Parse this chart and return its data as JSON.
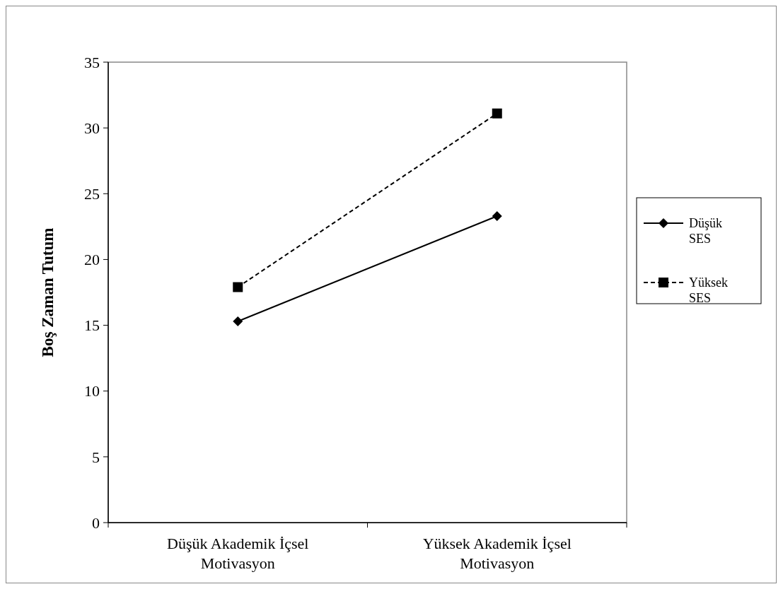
{
  "chart_data": {
    "type": "line",
    "ylabel": "Boş Zaman Tutum",
    "categories": [
      "Düşük Akademik İçsel Motivasyon",
      "Yüksek Akademik İçsel Motivasyon"
    ],
    "series": [
      {
        "name": "Düşük SES",
        "color": "#000000",
        "values": [
          15.3,
          23.3
        ],
        "marker": "diamond",
        "line_style": "solid"
      },
      {
        "name": "Yüksek SES",
        "color": "#000000",
        "values": [
          17.9,
          31.1
        ],
        "marker": "square",
        "line_style": "dashed"
      }
    ],
    "ylim": [
      0,
      35
    ],
    "yticks": [
      0,
      5,
      10,
      15,
      20,
      25,
      30,
      35
    ],
    "grid": false,
    "legend": "right"
  }
}
